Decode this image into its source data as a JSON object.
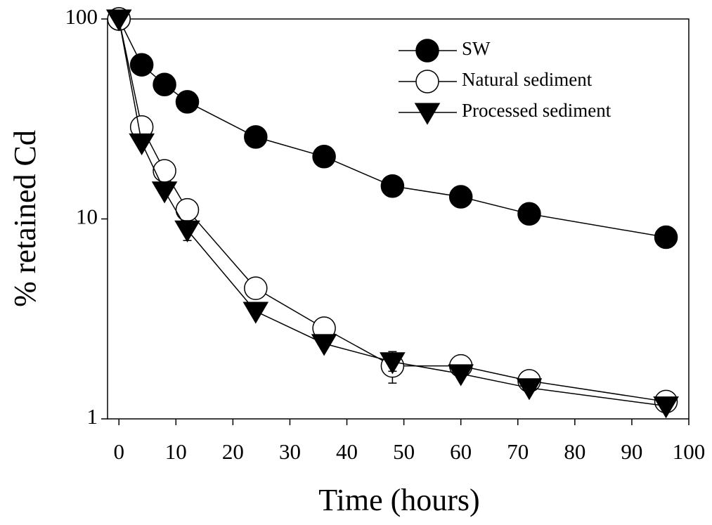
{
  "chart_data": {
    "type": "line",
    "x_label": "Time (hours)",
    "y_label": "% retained Cd",
    "x": [
      0,
      4,
      8,
      12,
      24,
      36,
      48,
      60,
      72,
      96
    ],
    "series": [
      {
        "name": "SW",
        "color": "#000000",
        "marker": "circle",
        "marker_fill": "#000000",
        "values": [
          100,
          59,
          47,
          38.5,
          25.7,
          20.5,
          14.6,
          12.9,
          10.6,
          8.1
        ],
        "errors": [
          null,
          null,
          null,
          null,
          null,
          null,
          null,
          null,
          null,
          null
        ]
      },
      {
        "name": "Natural sediment",
        "color": "#000000",
        "marker": "circle",
        "marker_fill": "#ffffff",
        "values": [
          100,
          28.8,
          17.4,
          11.1,
          4.5,
          2.84,
          1.84,
          1.84,
          1.55,
          1.22
        ],
        "errors": [
          null,
          null,
          null,
          null,
          null,
          null,
          0.33,
          0.1,
          null,
          0.1
        ]
      },
      {
        "name": "Processed sediment",
        "color": "#000000",
        "marker": "triangle-down",
        "marker_fill": "#000000",
        "values": [
          100,
          24,
          13.8,
          8.8,
          3.45,
          2.38,
          1.93,
          1.68,
          1.43,
          1.16
        ],
        "errors": [
          null,
          null,
          null,
          1.0,
          null,
          null,
          0.2,
          null,
          null,
          null
        ]
      }
    ],
    "xlim": [
      -2,
      100
    ],
    "xticks": [
      0,
      10,
      20,
      30,
      40,
      50,
      60,
      70,
      80,
      90,
      100
    ],
    "ylim": [
      1,
      100
    ],
    "yticks": [
      1,
      10,
      100
    ],
    "y_log": true,
    "legend": "top-right"
  }
}
